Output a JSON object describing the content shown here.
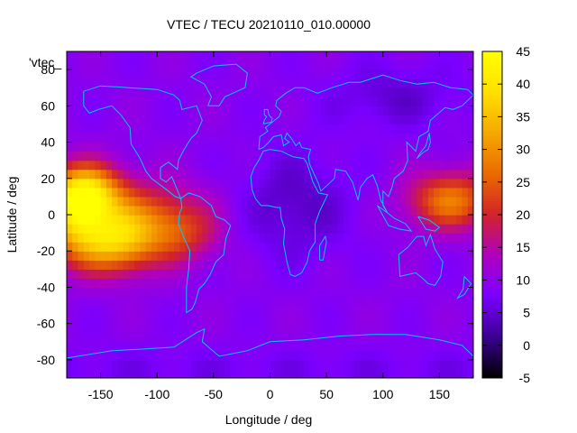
{
  "chart_data": {
    "type": "heatmap",
    "title": "VTEC / TECU 20210110_010.00000",
    "xlabel": "Longitude / deg",
    "ylabel": "Latitude / deg",
    "legend_key": "'vtec_",
    "xlim": [
      -180,
      180
    ],
    "ylim": [
      -90,
      90
    ],
    "x_ticks": [
      -150,
      -100,
      -50,
      0,
      50,
      100,
      150
    ],
    "y_ticks": [
      -80,
      -60,
      -40,
      -20,
      0,
      20,
      40,
      60,
      80
    ],
    "colorbar": {
      "range": [
        -5,
        45
      ],
      "ticks": [
        -5,
        0,
        5,
        10,
        15,
        20,
        25,
        30,
        35,
        40,
        45
      ],
      "palette": [
        "#000000",
        "#3a0090",
        "#7a00ff",
        "#b000c0",
        "#d2232b",
        "#ea6a00",
        "#f6a800",
        "#ffe000",
        "#ffff00"
      ]
    },
    "grid_resolution_deg": {
      "lon": 5,
      "lat": 5
    },
    "background_level_tecu": 9,
    "features": [
      {
        "name": "equatorial anomaly crest (Pacific, east)",
        "lon": -165,
        "lat": 12,
        "peak_tecu": 40
      },
      {
        "name": "equatorial anomaly crest (Pacific, south)",
        "lon": -140,
        "lat": -15,
        "peak_tecu": 31
      },
      {
        "name": "equatorial band (South America / Pacific)",
        "lon": -110,
        "lat": 0,
        "peak_tecu": 24
      },
      {
        "name": "equatorial band (Western Pacific)",
        "lon": 160,
        "lat": 8,
        "peak_tecu": 28
      },
      {
        "name": "night-side trough (Africa)",
        "lon": 20,
        "lat": 5,
        "peak_tecu": 3
      },
      {
        "name": "northern polar low (Siberia)",
        "lon": 110,
        "lat": 65,
        "peak_tecu": 4
      }
    ]
  },
  "coastline_color": "#00c8ff"
}
